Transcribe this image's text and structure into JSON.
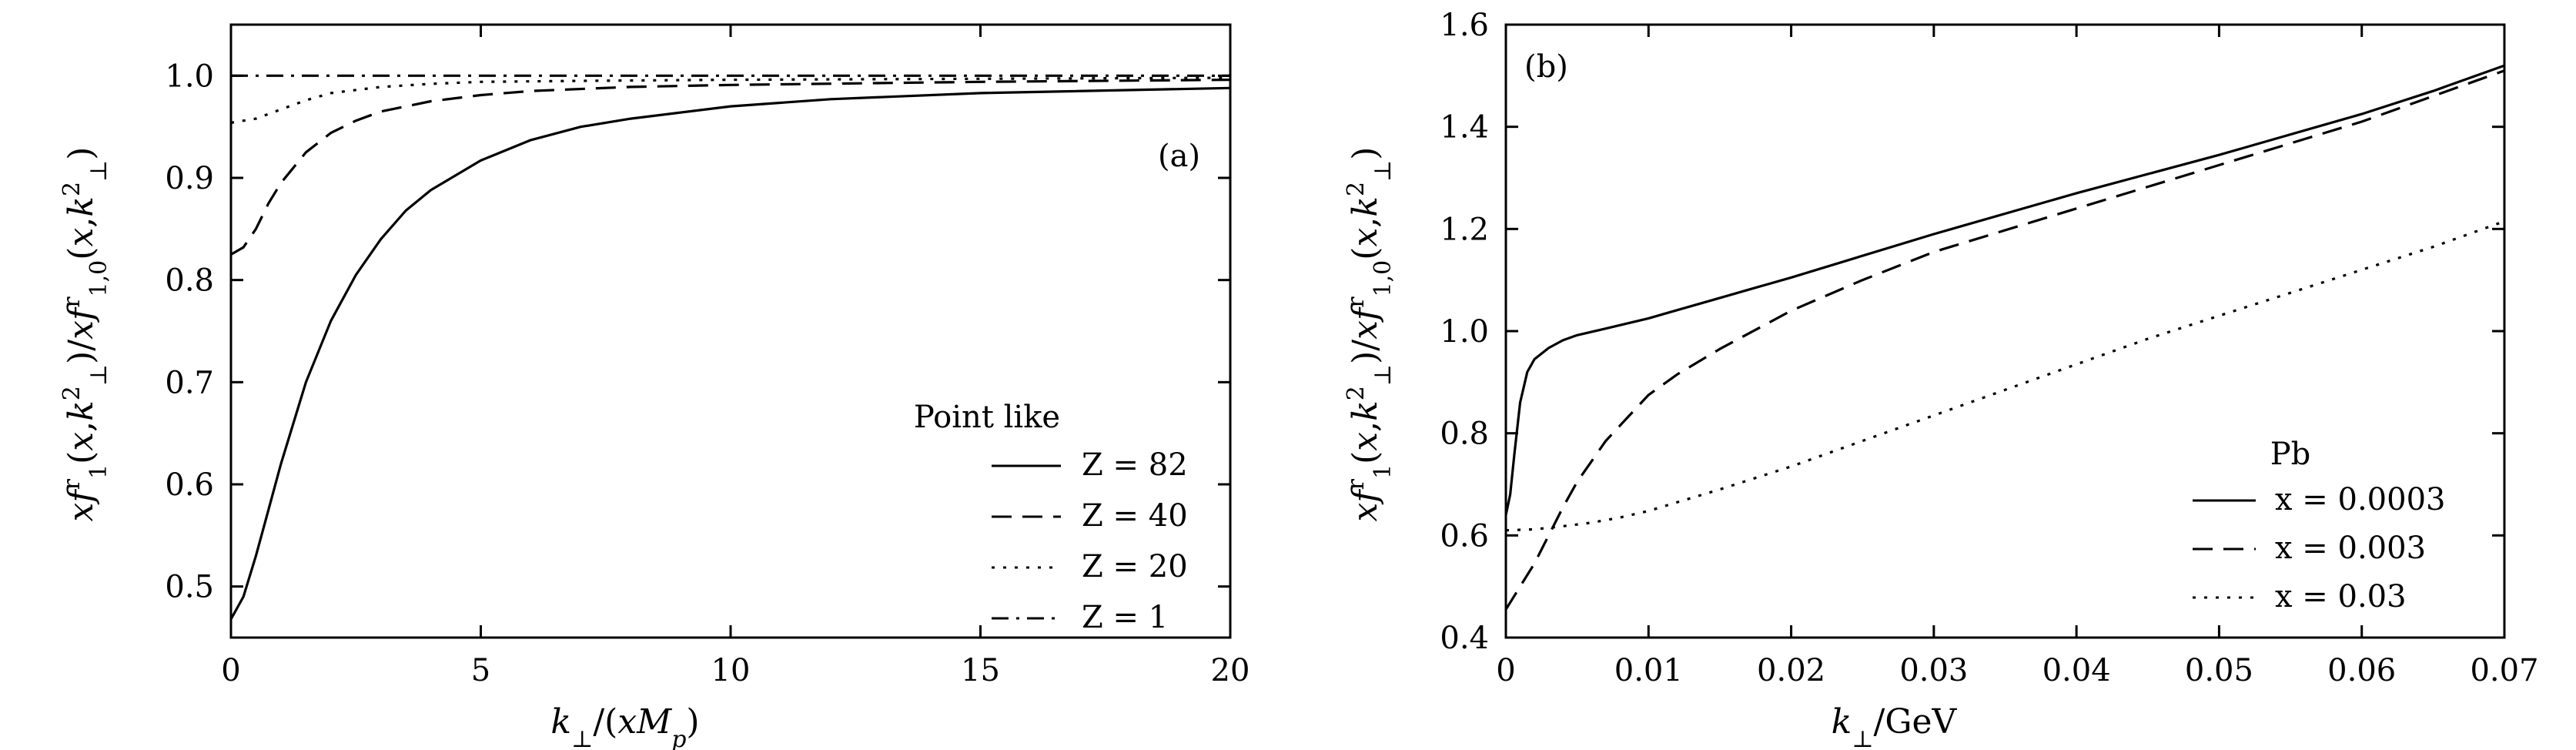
{
  "chart_data": [
    {
      "type": "line",
      "panel_label": "(a)",
      "xlabel": "k⊥/(xMp)",
      "ylabel": "xf1r(x,k⊥2)/xf1,0r(x,k⊥2)",
      "xlim": [
        0,
        20
      ],
      "ylim": [
        0.45,
        1.05
      ],
      "x_ticks": [
        "0",
        "5",
        "10",
        "15",
        "20"
      ],
      "y_ticks": [
        "0.5",
        "0.6",
        "0.7",
        "0.8",
        "0.9",
        "1.0"
      ],
      "x_tick_values": [
        0,
        5,
        10,
        15,
        20
      ],
      "y_tick_values": [
        0.5,
        0.6,
        0.7,
        0.8,
        0.9,
        1.0
      ],
      "grid": false,
      "legend": {
        "title": "Point like",
        "placement": "bottom-right"
      },
      "series": [
        {
          "name": "Z = 82",
          "style": "solid",
          "x": [
            0,
            0.25,
            0.5,
            0.75,
            1,
            1.5,
            2,
            2.5,
            3,
            3.5,
            4,
            5,
            6,
            7,
            8,
            10,
            12,
            15,
            20
          ],
          "y": [
            0.468,
            0.49,
            0.53,
            0.575,
            0.62,
            0.7,
            0.76,
            0.805,
            0.84,
            0.868,
            0.888,
            0.917,
            0.937,
            0.95,
            0.958,
            0.97,
            0.977,
            0.983,
            0.988
          ]
        },
        {
          "name": "Z = 40",
          "style": "dashed",
          "x": [
            0,
            0.25,
            0.5,
            0.75,
            1,
            1.5,
            2,
            2.5,
            3,
            4,
            5,
            6,
            8,
            10,
            15,
            20
          ],
          "y": [
            0.825,
            0.832,
            0.85,
            0.875,
            0.895,
            0.925,
            0.944,
            0.956,
            0.965,
            0.975,
            0.981,
            0.985,
            0.989,
            0.991,
            0.994,
            0.996
          ]
        },
        {
          "name": "Z = 20",
          "style": "dotted",
          "x": [
            0,
            0.5,
            1,
            1.5,
            2,
            3,
            4,
            5,
            7,
            10,
            15,
            20
          ],
          "y": [
            0.954,
            0.958,
            0.967,
            0.976,
            0.983,
            0.989,
            0.992,
            0.994,
            0.995,
            0.996,
            0.997,
            0.998
          ]
        },
        {
          "name": "Z = 1",
          "style": "dashdot",
          "x": [
            0,
            5,
            10,
            15,
            20
          ],
          "y": [
            1.0,
            1.0,
            1.0,
            1.0,
            1.0
          ]
        }
      ]
    },
    {
      "type": "line",
      "panel_label": "(b)",
      "xlabel": "k⊥/GeV",
      "ylabel": "xf1r(x,k⊥2)/xf1,0r(x,k⊥2)",
      "xlim": [
        0,
        0.07
      ],
      "ylim": [
        0.4,
        1.6
      ],
      "x_ticks": [
        "0",
        "0.01",
        "0.02",
        "0.03",
        "0.04",
        "0.05",
        "0.06",
        "0.07"
      ],
      "y_ticks": [
        "0.4",
        "0.6",
        "0.8",
        "1.0",
        "1.2",
        "1.4",
        "1.6"
      ],
      "x_tick_values": [
        0,
        0.01,
        0.02,
        0.03,
        0.04,
        0.05,
        0.06,
        0.07
      ],
      "y_tick_values": [
        0.4,
        0.6,
        0.8,
        1.0,
        1.2,
        1.4,
        1.6
      ],
      "grid": false,
      "legend": {
        "title": "Pb",
        "placement": "bottom-right"
      },
      "series": [
        {
          "name": "x = 0.0003",
          "style": "solid",
          "x": [
            0,
            0.0003,
            0.0006,
            0.001,
            0.0015,
            0.002,
            0.003,
            0.004,
            0.005,
            0.007,
            0.01,
            0.015,
            0.02,
            0.03,
            0.04,
            0.05,
            0.06,
            0.065,
            0.07
          ],
          "y": [
            0.64,
            0.68,
            0.76,
            0.86,
            0.92,
            0.945,
            0.967,
            0.982,
            0.992,
            1.005,
            1.025,
            1.065,
            1.105,
            1.19,
            1.27,
            1.345,
            1.425,
            1.47,
            1.52
          ]
        },
        {
          "name": "x = 0.003",
          "style": "dashed",
          "x": [
            0,
            0.001,
            0.002,
            0.003,
            0.004,
            0.005,
            0.006,
            0.007,
            0.008,
            0.01,
            0.012,
            0.015,
            0.02,
            0.025,
            0.03,
            0.04,
            0.05,
            0.06,
            0.07
          ],
          "y": [
            0.455,
            0.5,
            0.545,
            0.6,
            0.655,
            0.705,
            0.745,
            0.785,
            0.815,
            0.875,
            0.915,
            0.965,
            1.04,
            1.1,
            1.155,
            1.24,
            1.325,
            1.41,
            1.51
          ]
        },
        {
          "name": "x = 0.03",
          "style": "dotted",
          "x": [
            0,
            0.002,
            0.004,
            0.006,
            0.008,
            0.01,
            0.015,
            0.02,
            0.025,
            0.03,
            0.035,
            0.04,
            0.045,
            0.05,
            0.055,
            0.06,
            0.065,
            0.07
          ],
          "y": [
            0.61,
            0.612,
            0.618,
            0.625,
            0.635,
            0.648,
            0.69,
            0.735,
            0.785,
            0.835,
            0.885,
            0.935,
            0.985,
            1.03,
            1.075,
            1.12,
            1.165,
            1.215
          ]
        }
      ]
    }
  ]
}
